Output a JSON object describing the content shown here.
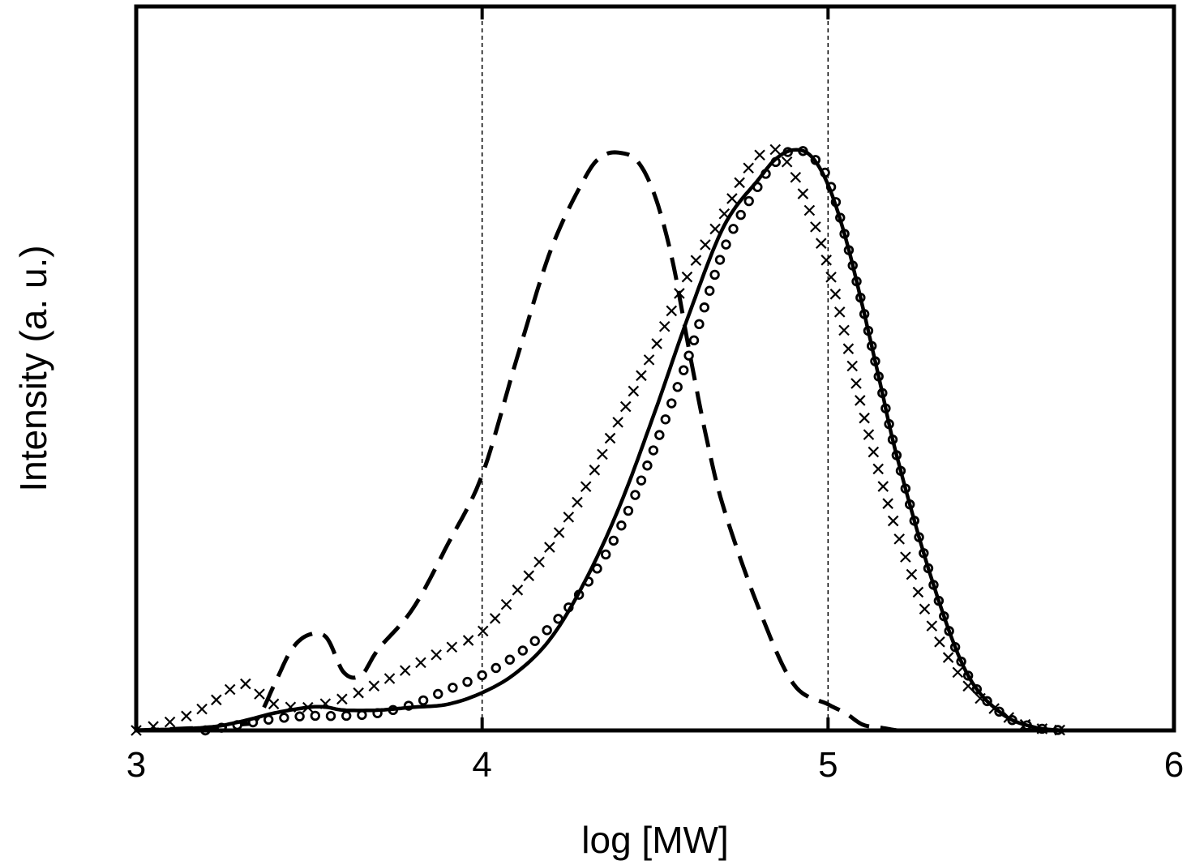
{
  "chart_data": {
    "type": "line",
    "title": "",
    "xlabel": "log [MW]",
    "ylabel": "Intensity (a. u.)",
    "xlim": [
      3,
      6
    ],
    "ylim": [
      0,
      1.0
    ],
    "xticks": [
      "3",
      "4",
      "5",
      "6"
    ],
    "xtick_values": [
      3,
      4,
      5,
      6
    ],
    "reference_lines_x": [
      4,
      5
    ],
    "grid": false,
    "legend": "none",
    "series": [
      {
        "style": "dashed",
        "x": [
          3.0,
          3.2,
          3.3,
          3.35,
          3.4,
          3.45,
          3.5,
          3.55,
          3.6,
          3.65,
          3.7,
          3.8,
          3.9,
          4.0,
          4.1,
          4.2,
          4.3,
          4.35,
          4.4,
          4.45,
          4.5,
          4.55,
          4.6,
          4.65,
          4.7,
          4.8,
          4.9,
          5.0,
          5.05,
          5.1,
          5.15,
          5.2
        ],
        "y": [
          0.0,
          0.005,
          0.01,
          0.02,
          0.08,
          0.14,
          0.165,
          0.16,
          0.1,
          0.095,
          0.14,
          0.21,
          0.32,
          0.44,
          0.64,
          0.83,
          0.955,
          0.99,
          0.995,
          0.98,
          0.92,
          0.81,
          0.65,
          0.5,
          0.38,
          0.21,
          0.08,
          0.045,
          0.03,
          0.01,
          0.005,
          0.0
        ]
      },
      {
        "style": "x-markers",
        "x": [
          3.0,
          3.1,
          3.2,
          3.3,
          3.35,
          3.4,
          3.45,
          3.5,
          3.6,
          3.7,
          3.8,
          3.9,
          4.0,
          4.1,
          4.2,
          4.3,
          4.4,
          4.5,
          4.6,
          4.7,
          4.75,
          4.8,
          4.85,
          4.9,
          4.95,
          5.0,
          5.05,
          5.1,
          5.15,
          5.2,
          5.3,
          5.4,
          5.5,
          5.6,
          5.7
        ],
        "y": [
          0.0,
          0.015,
          0.04,
          0.08,
          0.065,
          0.045,
          0.04,
          0.04,
          0.055,
          0.08,
          0.11,
          0.14,
          0.17,
          0.24,
          0.32,
          0.42,
          0.54,
          0.66,
          0.79,
          0.89,
          0.95,
          0.99,
          1.0,
          0.96,
          0.89,
          0.8,
          0.68,
          0.55,
          0.44,
          0.34,
          0.18,
          0.08,
          0.03,
          0.005,
          0.0
        ]
      },
      {
        "style": "circle-markers",
        "x": [
          3.2,
          3.3,
          3.4,
          3.5,
          3.6,
          3.7,
          3.8,
          3.9,
          4.0,
          4.1,
          4.2,
          4.3,
          4.4,
          4.5,
          4.6,
          4.7,
          4.8,
          4.85,
          4.9,
          4.95,
          5.0,
          5.05,
          5.1,
          5.15,
          5.2,
          5.3,
          5.4,
          5.5,
          5.6,
          5.7
        ],
        "y": [
          0.0,
          0.01,
          0.02,
          0.025,
          0.025,
          0.03,
          0.045,
          0.07,
          0.095,
          0.13,
          0.18,
          0.25,
          0.35,
          0.49,
          0.65,
          0.83,
          0.94,
          0.98,
          1.0,
          0.99,
          0.95,
          0.85,
          0.73,
          0.6,
          0.47,
          0.26,
          0.1,
          0.03,
          0.005,
          0.0
        ]
      },
      {
        "style": "solid",
        "x": [
          3.0,
          3.2,
          3.3,
          3.4,
          3.5,
          3.55,
          3.6,
          3.7,
          3.8,
          3.9,
          4.0,
          4.1,
          4.2,
          4.3,
          4.4,
          4.5,
          4.6,
          4.7,
          4.8,
          4.85,
          4.9,
          4.95,
          5.0,
          5.05,
          5.1,
          5.15,
          5.2,
          5.3,
          5.4,
          5.5,
          5.6,
          5.7
        ],
        "y": [
          0.0,
          0.005,
          0.015,
          0.03,
          0.04,
          0.04,
          0.035,
          0.035,
          0.04,
          0.045,
          0.065,
          0.1,
          0.16,
          0.26,
          0.39,
          0.55,
          0.72,
          0.87,
          0.95,
          0.985,
          1.0,
          0.99,
          0.94,
          0.85,
          0.73,
          0.6,
          0.47,
          0.26,
          0.1,
          0.03,
          0.005,
          0.0
        ]
      }
    ]
  }
}
